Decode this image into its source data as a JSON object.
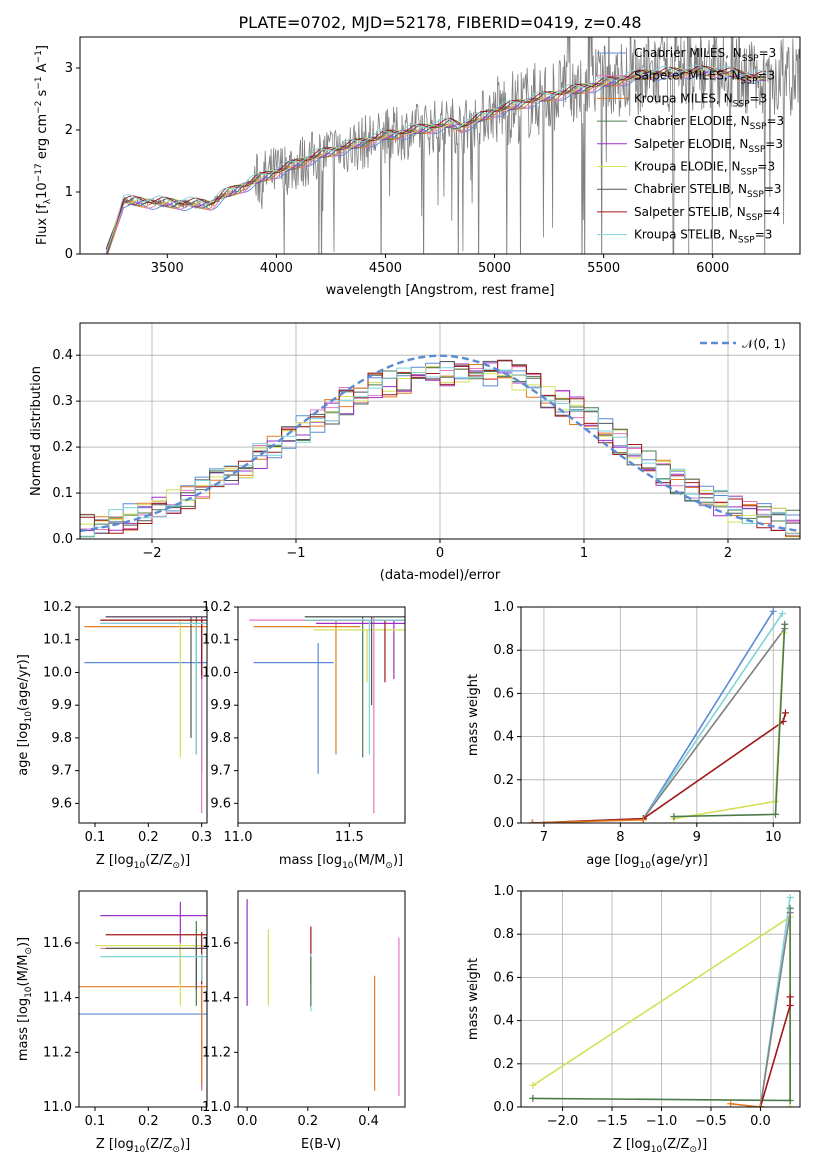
{
  "chart_data": [
    {
      "panel": "spectrum",
      "type": "line",
      "title": "PLATE=0702, MJD=52178, FIBERID=0419, z=0.48",
      "xlabel": "wavelength [Angstrom, rest frame]",
      "ylabel": "Flux [f_λ 10^-17 erg cm^-2 s^-1 A^-1]",
      "xlim": [
        3100,
        6400
      ],
      "ylim": [
        0,
        3.5
      ],
      "xticks": [
        3500,
        4000,
        4500,
        5000,
        5500,
        6000
      ],
      "yticks": [
        0,
        1,
        2,
        3
      ],
      "grid": false,
      "legend_position": "top-right",
      "series": [
        {
          "name": "Chabrier MILES, N_SSP=3",
          "color": "#5b8bd4"
        },
        {
          "name": "Salpeter MILES, N_SSP=3",
          "color": "#e377c2"
        },
        {
          "name": "Kroupa MILES, N_SSP=3",
          "color": "#e07b20"
        },
        {
          "name": "Chabrier ELODIE, N_SSP=3",
          "color": "#4a7a4a"
        },
        {
          "name": "Salpeter ELODIE, N_SSP=3",
          "color": "#9b30c9"
        },
        {
          "name": "Kroupa ELODIE, N_SSP=3",
          "color": "#d4e157"
        },
        {
          "name": "Chabrier STELIB, N_SSP=3",
          "color": "#555555"
        },
        {
          "name": "Salpeter STELIB, N_SSP=4",
          "color": "#a01818"
        },
        {
          "name": "Kroupa STELIB, N_SSP=3",
          "color": "#7fd3d9"
        }
      ],
      "model_trend": {
        "x": [
          3220,
          3300,
          3500,
          3700,
          3760,
          3950,
          4200,
          4500,
          4800,
          4850,
          5000,
          5200,
          5500,
          5700,
          6000,
          6200
        ],
        "y": [
          0.0,
          0.85,
          0.82,
          0.8,
          0.95,
          1.25,
          1.6,
          1.9,
          2.1,
          2.05,
          2.3,
          2.5,
          2.75,
          2.9,
          2.95,
          2.85
        ]
      }
    },
    {
      "panel": "residual_histogram",
      "type": "bar",
      "xlabel": "(data-model)/error",
      "ylabel": "Normed distribution",
      "xlim": [
        -2.5,
        2.5
      ],
      "ylim": [
        0,
        0.47
      ],
      "xticks": [
        -2,
        -1,
        0,
        1,
        2
      ],
      "yticks": [
        0.0,
        0.1,
        0.2,
        0.3,
        0.4
      ],
      "grid": true,
      "legend_position": "top-right",
      "reference_curve": "𝒩(0, 1)",
      "bin_width": 0.1,
      "histogram_shape": {
        "x": [
          -2.5,
          -2.0,
          -1.5,
          -1.0,
          -0.5,
          0.0,
          0.5,
          1.0,
          1.5,
          2.0,
          2.5
        ],
        "y": [
          0.02,
          0.06,
          0.13,
          0.23,
          0.33,
          0.36,
          0.36,
          0.27,
          0.15,
          0.07,
          0.03
        ]
      }
    },
    {
      "panel": "age_vs_Z",
      "type": "scatter",
      "xlabel": "Z [log10(Z/Z⊙)]",
      "ylabel": "age [log10(age/yr)]",
      "xlim": [
        0.07,
        0.31
      ],
      "ylim": [
        9.54,
        10.2
      ],
      "xticks": [
        0.1,
        0.2,
        0.3
      ],
      "yticks": [
        9.6,
        9.7,
        9.8,
        9.9,
        10.0,
        10.1,
        10.2
      ]
    },
    {
      "panel": "age_vs_mass",
      "type": "scatter",
      "xlabel": "mass [log10(M/M⊙)]",
      "xlim": [
        11.0,
        11.75
      ],
      "ylim": [
        9.54,
        10.2
      ],
      "xticks": [
        11.0,
        11.5
      ],
      "yticks": [
        9.6,
        9.7,
        9.8,
        9.9,
        10.0,
        10.1,
        10.2
      ]
    },
    {
      "panel": "massweight_vs_age",
      "type": "line",
      "xlabel": "age [log10(age/yr)]",
      "ylabel": "mass weight",
      "xlim": [
        6.7,
        10.35
      ],
      "ylim": [
        0,
        1
      ],
      "xticks": [
        7,
        8,
        9,
        10
      ],
      "yticks": [
        0.0,
        0.2,
        0.4,
        0.6,
        0.8,
        1.0
      ],
      "grid": true
    },
    {
      "panel": "mass_vs_Z",
      "type": "scatter",
      "xlabel": "Z [log10(Z/Z⊙)]",
      "ylabel": "mass [log10(M/M⊙)]",
      "xlim": [
        0.07,
        0.31
      ],
      "ylim": [
        11.0,
        11.79
      ],
      "xticks": [
        0.1,
        0.2,
        0.3
      ],
      "yticks": [
        11.0,
        11.2,
        11.4,
        11.6
      ]
    },
    {
      "panel": "mass_vs_EBV",
      "type": "scatter",
      "xlabel": "E(B-V)",
      "xlim": [
        -0.03,
        0.52
      ],
      "ylim": [
        11.0,
        11.79
      ],
      "xticks": [
        0.0,
        0.2,
        0.4
      ],
      "yticks": [
        11.0,
        11.2,
        11.4,
        11.6
      ]
    },
    {
      "panel": "massweight_vs_Z",
      "type": "line",
      "xlabel": "Z [log10(Z/Z⊙)]",
      "ylabel": "mass weight",
      "xlim": [
        -2.42,
        0.4
      ],
      "ylim": [
        0,
        1
      ],
      "xticks": [
        -2.0,
        -1.5,
        -1.0,
        -0.5,
        0.0
      ],
      "yticks": [
        0.0,
        0.2,
        0.4,
        0.6,
        0.8,
        1.0
      ],
      "grid": true
    }
  ]
}
